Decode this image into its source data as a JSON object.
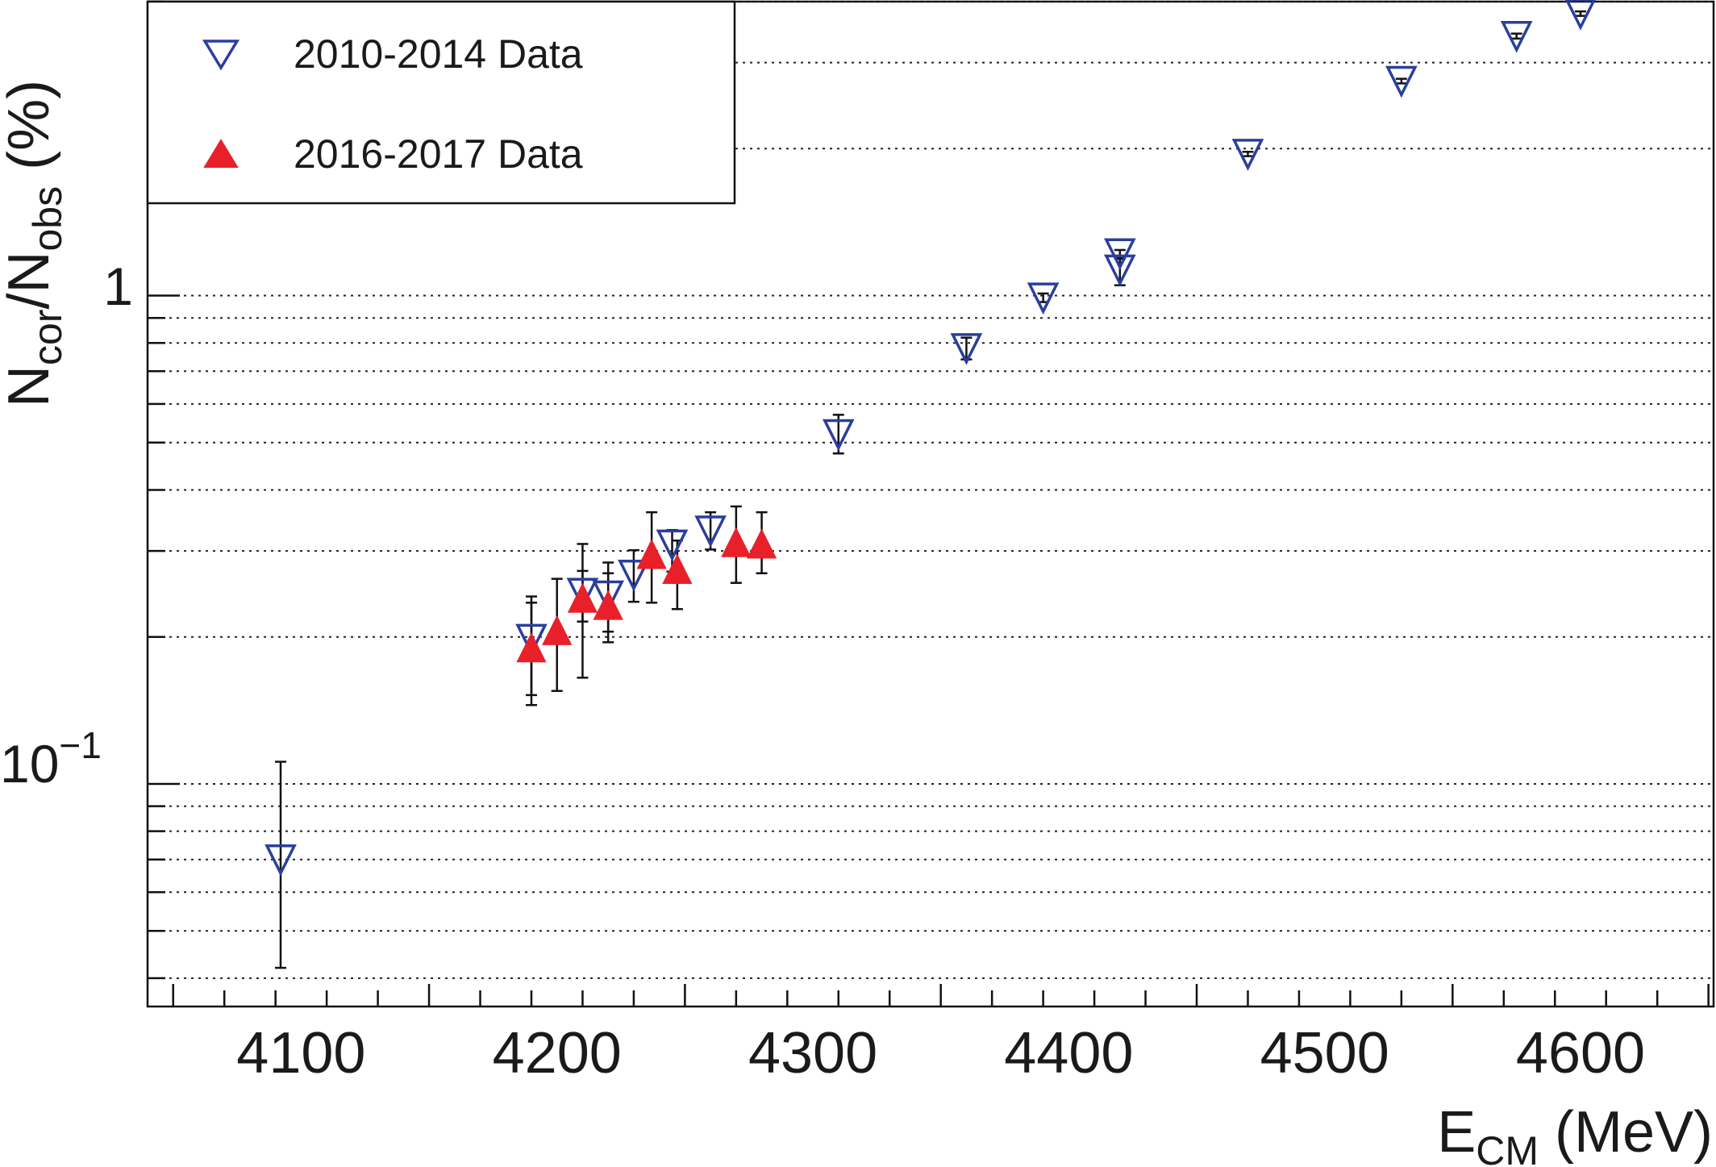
{
  "chart_data": {
    "type": "scatter",
    "title": "",
    "xlabel": {
      "main": "E",
      "sub": "CM",
      "unit": " (MeV)"
    },
    "ylabel": {
      "main1": "N",
      "sub1": "cor",
      "slash": "/N",
      "sub2": "obs",
      "unit": " (%)"
    },
    "x_ticks": [
      "4100",
      "4200",
      "4300",
      "4400",
      "4500",
      "4600"
    ],
    "y_ticks": {
      "one": "1",
      "tenth_base": "10",
      "tenth_exp": "−1"
    },
    "xlim": [
      4040,
      4652
    ],
    "ylim": [
      0.035,
      4.0
    ],
    "yscale": "log",
    "grid": "horizontal dotted",
    "legend_position": "top-left",
    "series": [
      {
        "name": "2010-2014 Data",
        "marker": "open-down-triangle",
        "color": "#2a3f9c",
        "points": [
          {
            "x": 4092,
            "y": 0.07,
            "lo": 0.042,
            "hi": 0.111
          },
          {
            "x": 4190,
            "y": 0.198,
            "lo": 0.152,
            "hi": 0.242
          },
          {
            "x": 4210,
            "y": 0.246,
            "lo": 0.215,
            "hi": 0.273
          },
          {
            "x": 4220,
            "y": 0.243,
            "lo": 0.205,
            "hi": 0.284
          },
          {
            "x": 4230,
            "y": 0.268,
            "lo": 0.236,
            "hi": 0.301
          },
          {
            "x": 4245,
            "y": 0.309,
            "lo": 0.272,
            "hi": 0.331
          },
          {
            "x": 4260,
            "y": 0.33,
            "lo": 0.302,
            "hi": 0.36
          },
          {
            "x": 4310,
            "y": 0.52,
            "lo": 0.475,
            "hi": 0.57
          },
          {
            "x": 4360,
            "y": 0.78,
            "lo": 0.74,
            "hi": 0.82
          },
          {
            "x": 4390,
            "y": 0.99,
            "lo": 0.97,
            "hi": 1.01
          },
          {
            "x": 4420,
            "y": 1.22,
            "lo": 1.2,
            "hi": 1.24
          },
          {
            "x": 4420,
            "y": 1.13,
            "lo": 1.05,
            "hi": 1.19
          },
          {
            "x": 4470,
            "y": 1.95,
            "lo": 1.93,
            "hi": 1.97
          },
          {
            "x": 4530,
            "y": 2.75,
            "lo": 2.72,
            "hi": 2.78
          },
          {
            "x": 4575,
            "y": 3.4,
            "lo": 3.36,
            "hi": 3.44
          },
          {
            "x": 4600,
            "y": 3.78,
            "lo": 3.74,
            "hi": 3.82
          }
        ]
      },
      {
        "name": "2016-2017 Data",
        "marker": "filled-up-triangle",
        "color": "#e8202a",
        "points": [
          {
            "x": 4190,
            "y": 0.19,
            "lo": 0.145,
            "hi": 0.235
          },
          {
            "x": 4200,
            "y": 0.206,
            "lo": 0.155,
            "hi": 0.263
          },
          {
            "x": 4210,
            "y": 0.24,
            "lo": 0.165,
            "hi": 0.31
          },
          {
            "x": 4220,
            "y": 0.232,
            "lo": 0.195,
            "hi": 0.27
          },
          {
            "x": 4237,
            "y": 0.295,
            "lo": 0.235,
            "hi": 0.36
          },
          {
            "x": 4247,
            "y": 0.275,
            "lo": 0.228,
            "hi": 0.315
          },
          {
            "x": 4270,
            "y": 0.312,
            "lo": 0.258,
            "hi": 0.37
          },
          {
            "x": 4280,
            "y": 0.31,
            "lo": 0.27,
            "hi": 0.36
          }
        ]
      }
    ]
  }
}
